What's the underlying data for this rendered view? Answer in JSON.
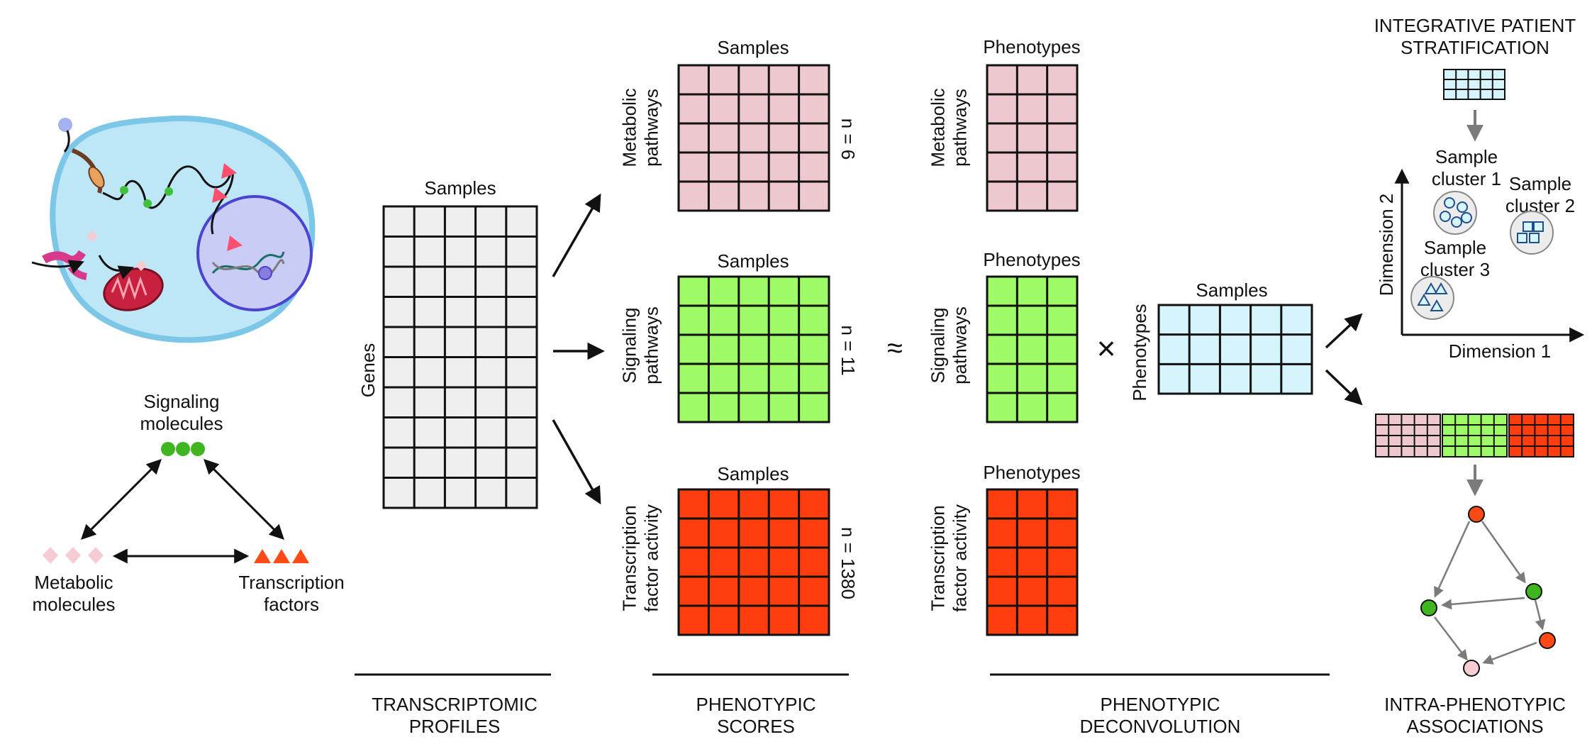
{
  "colors": {
    "grey_grid": "#efefef",
    "metabolic": "#edc8cf",
    "signaling": "#9efa66",
    "tf": "#ff3d0f",
    "phenotype": "#d5f4fc",
    "cell": "#bde6f6",
    "nucleus": "#c9ccf4",
    "mito": "#c8203f",
    "green_node": "#3fb61f",
    "red_node": "#ff4a16",
    "pink_node": "#f6ccd3",
    "arrow_grey": "#7b7b7b"
  },
  "biology": {
    "signaling": "Signaling\nmolecules",
    "metabolic": "Metabolic\nmolecules",
    "tf": "Transcription\nfactors"
  },
  "transcriptomic": {
    "top": "Samples",
    "side": "Genes",
    "caption": "TRANSCRIPTOMIC\nPROFILES"
  },
  "scores": {
    "rows": [
      {
        "top": "Samples",
        "side": "Metabolic\npathways",
        "n": "n = 6"
      },
      {
        "top": "Samples",
        "side": "Signaling\npathways",
        "n": "n = 11"
      },
      {
        "top": "Samples",
        "side": "Transcription\nfactor activity",
        "n": "n = 1380"
      }
    ],
    "caption": "PHENOTYPIC\nSCORES"
  },
  "deconvolution": {
    "approx": "≈",
    "times": "×",
    "rows": [
      {
        "top": "Phenotypes",
        "side": "Metabolic\npathways"
      },
      {
        "top": "Phenotypes",
        "side": "Signaling\npathways"
      },
      {
        "top": "Phenotypes",
        "side": "Transcription\nfactor activity"
      }
    ],
    "weights": {
      "top": "Samples",
      "side": "Phenotypes"
    },
    "caption": "PHENOTYPIC\nDECONVOLUTION"
  },
  "stratification": {
    "title": "INTEGRATIVE PATIENT\nSTRATIFICATION",
    "dim1": "Dimension 1",
    "dim2": "Dimension 2",
    "cluster1": "Sample\ncluster 1",
    "cluster2": "Sample\ncluster 2",
    "cluster3": "Sample\ncluster 3"
  },
  "associations": {
    "caption": "INTRA-PHENOTYPIC\nASSOCIATIONS"
  }
}
